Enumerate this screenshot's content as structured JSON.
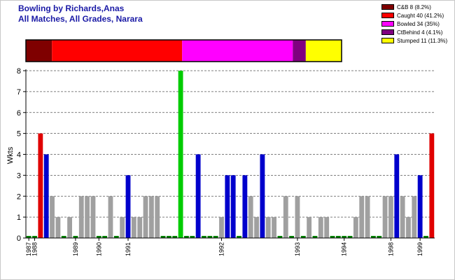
{
  "header": {
    "title_line1": "Bowling by Richards,Anas",
    "title_line2": "All Matches, All Grades, Narara"
  },
  "colors": {
    "cb": "#7f0000",
    "caught": "#ff0000",
    "bowled": "#ff00ff",
    "ctbehind": "#800080",
    "stumped": "#ffff00",
    "bar_blue": "#0000cc",
    "bar_red": "#e00000",
    "bar_gray": "#a0a0a0",
    "bar_green": "#00cc00",
    "bar_zero": "#008000"
  },
  "chart_data": [
    {
      "type": "bar",
      "orientation": "horizontal-stacked",
      "series": [
        {
          "name": "C&B 8 (8.2%)",
          "value": 8,
          "percent": 8.2,
          "color": "#7f0000"
        },
        {
          "name": "Caught 40 (41.2%)",
          "value": 40,
          "percent": 41.2,
          "color": "#ff0000"
        },
        {
          "name": "Bowled 34 (35%)",
          "value": 34,
          "percent": 35,
          "color": "#ff00ff"
        },
        {
          "name": "CtBehind 4 (4.1%)",
          "value": 4,
          "percent": 4.1,
          "color": "#800080"
        },
        {
          "name": "Stumped 11 (11.3%)",
          "value": 11,
          "percent": 11.3,
          "color": "#ffff00"
        }
      ],
      "legend": "top-right"
    },
    {
      "type": "bar",
      "title": "",
      "xlabel": "",
      "ylabel": "Wkts",
      "ylim": [
        0,
        8
      ],
      "yticks": [
        0,
        1,
        2,
        3,
        4,
        5,
        6,
        7,
        8
      ],
      "grid": true,
      "values": [
        0,
        0,
        5,
        4,
        2,
        1,
        0,
        1,
        0,
        2,
        2,
        2,
        0,
        0,
        2,
        0,
        1,
        3,
        1,
        1,
        2,
        2,
        2,
        0,
        0,
        0,
        8,
        0,
        0,
        4,
        0,
        0,
        0,
        1,
        3,
        3,
        0,
        3,
        2,
        1,
        4,
        1,
        1,
        0,
        2,
        0,
        2,
        0,
        1,
        0,
        1,
        1,
        0,
        0,
        0,
        0,
        1,
        2,
        2,
        0,
        0,
        2,
        2,
        4,
        2,
        1,
        2,
        3,
        0,
        5
      ],
      "xtick_labels": [
        {
          "label": "1987",
          "index": 0
        },
        {
          "label": "1988",
          "index": 1
        },
        {
          "label": "1989",
          "index": 8
        },
        {
          "label": "1990",
          "index": 12
        },
        {
          "label": "1991",
          "index": 17
        },
        {
          "label": "1992",
          "index": 33
        },
        {
          "label": "1993",
          "index": 46
        },
        {
          "label": "1994",
          "index": 54
        },
        {
          "label": "1998",
          "index": 62
        },
        {
          "label": "1999",
          "index": 67
        }
      ]
    }
  ]
}
